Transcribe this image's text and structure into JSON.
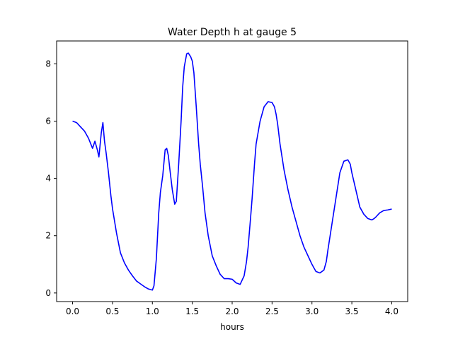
{
  "chart_data": {
    "type": "line",
    "title": "Water Depth h at gauge 5",
    "xlabel": "hours",
    "ylabel": "",
    "xlim": [
      -0.2,
      4.2
    ],
    "ylim": [
      -0.3,
      8.8
    ],
    "xticks": [
      0.0,
      0.5,
      1.0,
      1.5,
      2.0,
      2.5,
      3.0,
      3.5,
      4.0
    ],
    "xtick_labels": [
      "0.0",
      "0.5",
      "1.0",
      "1.5",
      "2.0",
      "2.5",
      "3.0",
      "3.5",
      "4.0"
    ],
    "yticks": [
      0,
      2,
      4,
      6,
      8
    ],
    "ytick_labels": [
      "0",
      "2",
      "4",
      "6",
      "8"
    ],
    "grid": false,
    "series": [
      {
        "color": "#0000ff",
        "x": [
          0.0,
          0.05,
          0.1,
          0.15,
          0.2,
          0.25,
          0.28,
          0.31,
          0.33,
          0.36,
          0.38,
          0.4,
          0.42,
          0.45,
          0.48,
          0.5,
          0.55,
          0.6,
          0.65,
          0.7,
          0.75,
          0.8,
          0.85,
          0.9,
          0.95,
          1.0,
          1.02,
          1.05,
          1.08,
          1.1,
          1.13,
          1.16,
          1.18,
          1.2,
          1.22,
          1.25,
          1.28,
          1.3,
          1.33,
          1.36,
          1.38,
          1.4,
          1.43,
          1.45,
          1.48,
          1.5,
          1.52,
          1.55,
          1.58,
          1.6,
          1.63,
          1.66,
          1.7,
          1.75,
          1.8,
          1.85,
          1.9,
          1.95,
          2.0,
          2.05,
          2.1,
          2.15,
          2.18,
          2.2,
          2.23,
          2.25,
          2.28,
          2.3,
          2.35,
          2.4,
          2.45,
          2.5,
          2.53,
          2.55,
          2.57,
          2.6,
          2.65,
          2.7,
          2.75,
          2.8,
          2.85,
          2.9,
          2.95,
          3.0,
          3.05,
          3.1,
          3.15,
          3.18,
          3.2,
          3.25,
          3.3,
          3.35,
          3.4,
          3.45,
          3.48,
          3.5,
          3.55,
          3.6,
          3.65,
          3.7,
          3.75,
          3.78,
          3.8,
          3.85,
          3.9,
          3.95,
          4.0
        ],
        "y": [
          6.0,
          5.95,
          5.8,
          5.65,
          5.4,
          5.05,
          5.3,
          5.0,
          4.75,
          5.6,
          5.95,
          5.3,
          4.9,
          4.2,
          3.4,
          2.95,
          2.1,
          1.4,
          1.05,
          0.8,
          0.6,
          0.42,
          0.32,
          0.22,
          0.14,
          0.1,
          0.25,
          1.2,
          2.8,
          3.5,
          4.1,
          5.0,
          5.05,
          4.8,
          4.3,
          3.6,
          3.1,
          3.2,
          4.5,
          6.0,
          7.2,
          7.9,
          8.35,
          8.38,
          8.25,
          8.1,
          7.7,
          6.5,
          5.2,
          4.5,
          3.7,
          2.8,
          2.0,
          1.3,
          0.95,
          0.65,
          0.5,
          0.5,
          0.48,
          0.35,
          0.3,
          0.6,
          1.1,
          1.6,
          2.6,
          3.3,
          4.5,
          5.2,
          6.0,
          6.5,
          6.68,
          6.65,
          6.5,
          6.25,
          5.9,
          5.2,
          4.3,
          3.6,
          3.0,
          2.5,
          2.0,
          1.6,
          1.3,
          1.0,
          0.75,
          0.7,
          0.8,
          1.1,
          1.5,
          2.4,
          3.3,
          4.2,
          4.6,
          4.65,
          4.5,
          4.2,
          3.6,
          3.0,
          2.75,
          2.6,
          2.55,
          2.6,
          2.65,
          2.8,
          2.88,
          2.9,
          2.93
        ]
      }
    ]
  }
}
